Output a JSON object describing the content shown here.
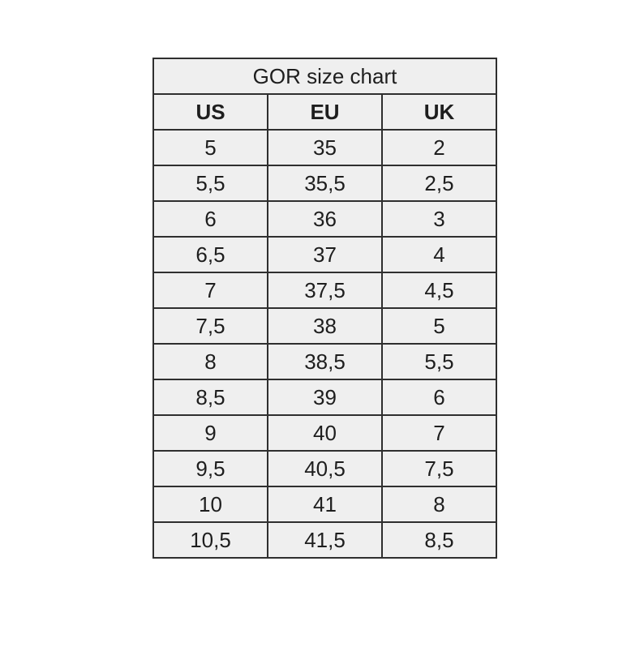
{
  "table": {
    "title": "GOR size chart",
    "header": [
      "US",
      "EU",
      "UK"
    ],
    "rows": [
      [
        "5",
        "35",
        "2"
      ],
      [
        "5,5",
        "35,5",
        "2,5"
      ],
      [
        "6",
        "36",
        "3"
      ],
      [
        "6,5",
        "37",
        "4"
      ],
      [
        "7",
        "37,5",
        "4,5"
      ],
      [
        "7,5",
        "38",
        "5"
      ],
      [
        "8",
        "38,5",
        "5,5"
      ],
      [
        "8,5",
        "39",
        "6"
      ],
      [
        "9",
        "40",
        "7"
      ],
      [
        "9,5",
        "40,5",
        "7,5"
      ],
      [
        "10",
        "41",
        "8"
      ],
      [
        "10,5",
        "41,5",
        "8,5"
      ]
    ]
  }
}
